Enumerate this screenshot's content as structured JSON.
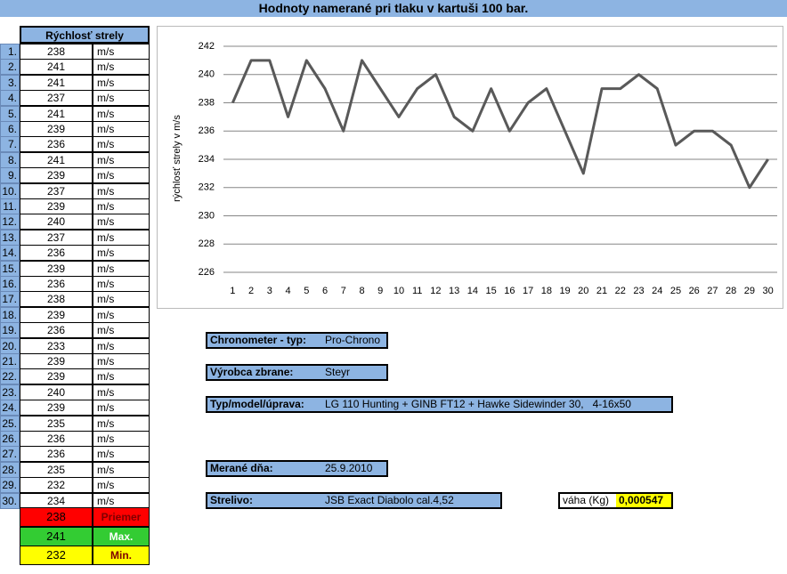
{
  "title": "Hodnoty namerané pri tlaku v kartuši 100 bar.",
  "table": {
    "header": "Rýchlosť strely",
    "unit": "m/s",
    "row_labels": [
      "1.",
      "2.",
      "3.",
      "4.",
      "5.",
      "6.",
      "7.",
      "8.",
      "9.",
      "10.",
      "11.",
      "12.",
      "13.",
      "14.",
      "15.",
      "16.",
      "17.",
      "18.",
      "19.",
      "20.",
      "21.",
      "22.",
      "23.",
      "24.",
      "25.",
      "26.",
      "27.",
      "28.",
      "29.",
      "30."
    ],
    "summary": [
      {
        "value": 238,
        "label": "Priemer"
      },
      {
        "value": 241,
        "label": "Max."
      },
      {
        "value": 232,
        "label": "Min."
      }
    ]
  },
  "chart_data": {
    "type": "line",
    "y_label": "rýchlosť strely v m/s",
    "categories": [
      "1",
      "2",
      "3",
      "4",
      "5",
      "6",
      "7",
      "8",
      "9",
      "10",
      "11",
      "12",
      "13",
      "14",
      "15",
      "16",
      "17",
      "18",
      "19",
      "20",
      "21",
      "22",
      "23",
      "24",
      "25",
      "26",
      "27",
      "28",
      "29",
      "30"
    ],
    "values": [
      238,
      241,
      241,
      237,
      241,
      239,
      236,
      241,
      239,
      237,
      239,
      240,
      237,
      236,
      239,
      236,
      238,
      239,
      236,
      233,
      239,
      239,
      240,
      239,
      235,
      236,
      236,
      235,
      232,
      234
    ],
    "color": "#595959",
    "ylim": [
      226,
      242
    ],
    "yticks": [
      226,
      228,
      230,
      232,
      234,
      236,
      238,
      240,
      242
    ],
    "grid": true
  },
  "info": [
    {
      "label": "Chronometer - typ:",
      "value": "Pro-Chrono"
    },
    {
      "label": "Výrobca zbrane:",
      "value": "Steyr"
    },
    {
      "label": "Typ/model/úprava:",
      "value": "LG 110 Hunting + GINB FT12 + Hawke Sidewinder 30,   4-16x50"
    },
    {
      "label": "Merané dňa:",
      "value": "25.9.2010"
    },
    {
      "label": "Strelivo:",
      "value": "JSB Exact Diabolo cal.4,52"
    }
  ],
  "weight": {
    "label": "váha (Kg)",
    "value": "0,000547"
  }
}
